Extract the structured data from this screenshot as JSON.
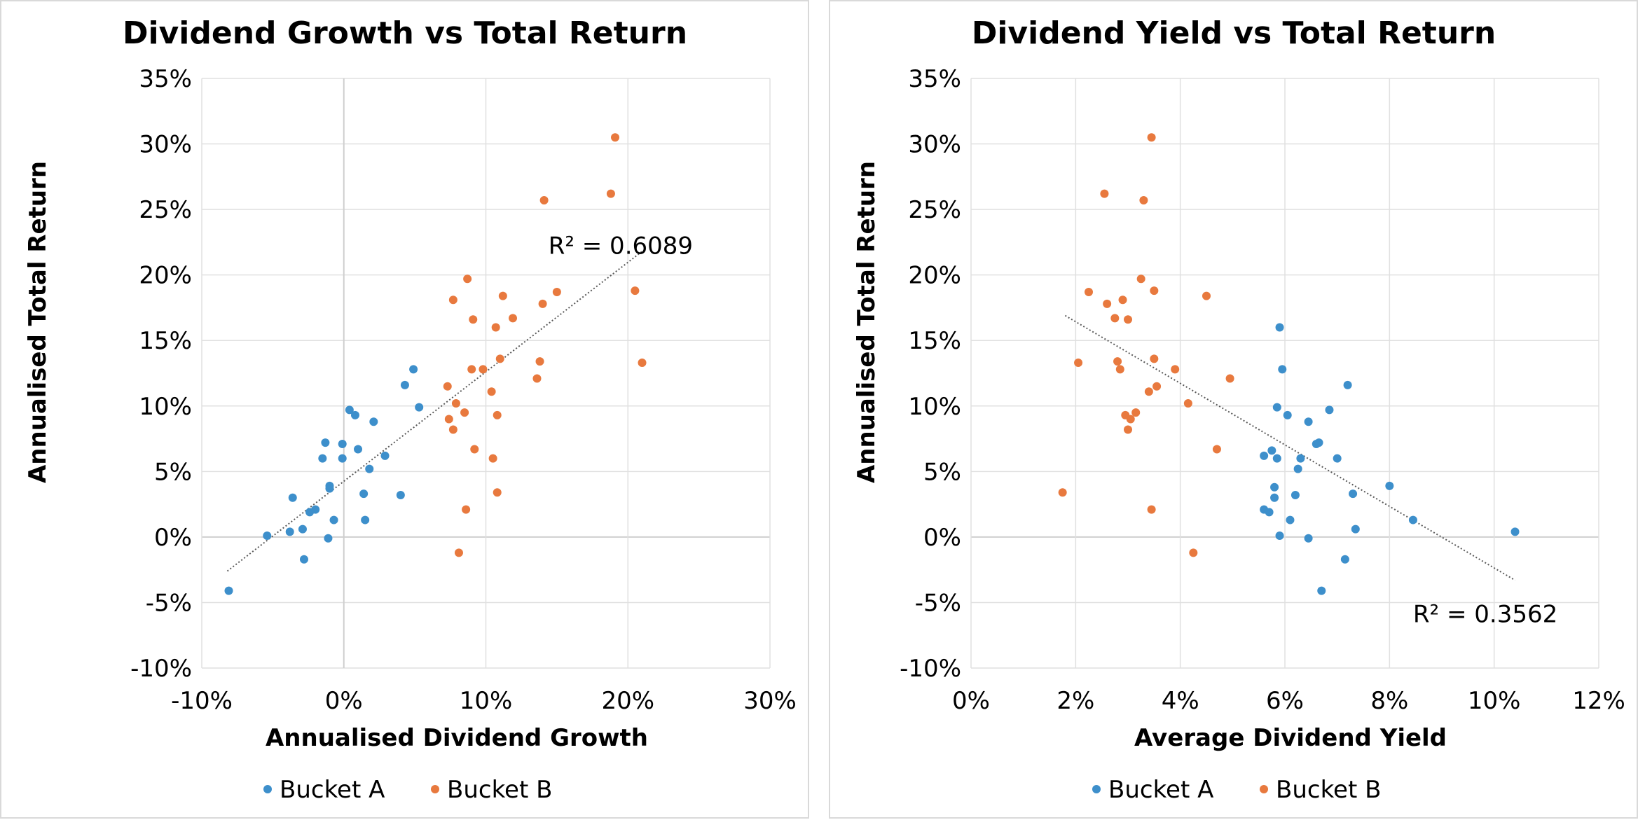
{
  "colors": {
    "bucket_a": "#3d8fcb",
    "bucket_b": "#e8793e",
    "grid": "#e0e0e0",
    "zero_line": "#cfcfcf",
    "trendline": "#595959"
  },
  "chart_data": [
    {
      "type": "scatter",
      "title": "Dividend Growth vs Total Return",
      "xlabel": "Annualised Dividend Growth",
      "ylabel": "Annualised Total Return",
      "xlim": [
        -10,
        30
      ],
      "ylim": [
        -10,
        35
      ],
      "xticks": [
        -10,
        0,
        10,
        20,
        30
      ],
      "yticks": [
        -10,
        -5,
        0,
        5,
        10,
        15,
        20,
        25,
        30,
        35
      ],
      "xtick_labels": [
        "-10%",
        "0%",
        "10%",
        "20%",
        "30%"
      ],
      "ytick_labels": [
        "-10%",
        "-5%",
        "0%",
        "5%",
        "10%",
        "15%",
        "20%",
        "25%",
        "30%",
        "35%"
      ],
      "grid": true,
      "legend_position": "bottom",
      "trendline": {
        "x": [
          -8.2,
          21.0
        ],
        "y": [
          -2.6,
          21.8
        ],
        "label": "R² = 0.6089",
        "label_at": [
          14.4,
          21.6
        ]
      },
      "series": [
        {
          "name": "Bucket A",
          "points": [
            [
              -8.1,
              -4.1
            ],
            [
              -5.4,
              0.1
            ],
            [
              -3.8,
              0.4
            ],
            [
              -3.6,
              3.0
            ],
            [
              -2.9,
              0.6
            ],
            [
              -2.8,
              -1.7
            ],
            [
              -2.4,
              1.9
            ],
            [
              -2.0,
              2.1
            ],
            [
              -1.5,
              6.0
            ],
            [
              -1.3,
              7.2
            ],
            [
              -1.1,
              -0.1
            ],
            [
              -1.0,
              3.7
            ],
            [
              -1.0,
              3.9
            ],
            [
              -0.7,
              1.3
            ],
            [
              -0.1,
              7.1
            ],
            [
              -0.1,
              6.0
            ],
            [
              0.4,
              9.7
            ],
            [
              0.8,
              9.3
            ],
            [
              1.0,
              6.7
            ],
            [
              1.4,
              3.3
            ],
            [
              1.5,
              1.3
            ],
            [
              1.8,
              5.2
            ],
            [
              2.1,
              8.8
            ],
            [
              2.9,
              6.2
            ],
            [
              4.0,
              3.2
            ],
            [
              4.3,
              11.6
            ],
            [
              4.9,
              12.8
            ],
            [
              5.3,
              9.9
            ]
          ]
        },
        {
          "name": "Bucket B",
          "points": [
            [
              7.3,
              11.5
            ],
            [
              7.4,
              9.0
            ],
            [
              7.7,
              8.2
            ],
            [
              7.7,
              18.1
            ],
            [
              7.9,
              10.2
            ],
            [
              8.1,
              -1.2
            ],
            [
              8.5,
              9.5
            ],
            [
              8.6,
              2.1
            ],
            [
              8.7,
              19.7
            ],
            [
              9.0,
              12.8
            ],
            [
              9.1,
              16.6
            ],
            [
              9.2,
              6.7
            ],
            [
              9.8,
              12.8
            ],
            [
              10.4,
              11.1
            ],
            [
              10.5,
              6.0
            ],
            [
              10.7,
              16.0
            ],
            [
              10.8,
              9.3
            ],
            [
              10.8,
              3.4
            ],
            [
              11.0,
              13.6
            ],
            [
              11.2,
              18.4
            ],
            [
              11.9,
              16.7
            ],
            [
              13.6,
              12.1
            ],
            [
              13.8,
              13.4
            ],
            [
              14.0,
              17.8
            ],
            [
              14.1,
              25.7
            ],
            [
              15.0,
              18.7
            ],
            [
              18.8,
              26.2
            ],
            [
              19.1,
              30.5
            ],
            [
              20.5,
              18.8
            ],
            [
              21.0,
              13.3
            ]
          ]
        }
      ]
    },
    {
      "type": "scatter",
      "title": "Dividend Yield vs Total Return",
      "xlabel": "Average Dividend Yield",
      "ylabel": "Annualised Total Return",
      "xlim": [
        0,
        12
      ],
      "ylim": [
        -10,
        35
      ],
      "xticks": [
        0,
        2,
        4,
        6,
        8,
        10,
        12
      ],
      "yticks": [
        -10,
        -5,
        0,
        5,
        10,
        15,
        20,
        25,
        30,
        35
      ],
      "xtick_labels": [
        "0%",
        "2%",
        "4%",
        "6%",
        "8%",
        "10%",
        "12%"
      ],
      "ytick_labels": [
        "-10%",
        "-5%",
        "0%",
        "5%",
        "10%",
        "15%",
        "20%",
        "25%",
        "30%",
        "35%"
      ],
      "grid": true,
      "legend_position": "bottom",
      "trendline": {
        "x": [
          1.8,
          10.4
        ],
        "y": [
          16.9,
          -3.3
        ],
        "label": "R² = 0.3562",
        "label_at": [
          8.45,
          -6.5
        ]
      },
      "series": [
        {
          "name": "Bucket A",
          "points": [
            [
              5.6,
              6.2
            ],
            [
              5.6,
              2.1
            ],
            [
              5.7,
              1.9
            ],
            [
              5.75,
              6.6
            ],
            [
              5.8,
              3.8
            ],
            [
              5.8,
              3.0
            ],
            [
              5.85,
              6.0
            ],
            [
              5.85,
              9.9
            ],
            [
              5.9,
              0.1
            ],
            [
              5.9,
              16.0
            ],
            [
              5.95,
              12.8
            ],
            [
              6.05,
              9.3
            ],
            [
              6.1,
              1.3
            ],
            [
              6.2,
              3.2
            ],
            [
              6.25,
              5.2
            ],
            [
              6.3,
              6.0
            ],
            [
              6.45,
              -0.1
            ],
            [
              6.45,
              8.8
            ],
            [
              6.6,
              7.1
            ],
            [
              6.65,
              7.2
            ],
            [
              6.7,
              -4.1
            ],
            [
              6.85,
              9.7
            ],
            [
              7.0,
              6.0
            ],
            [
              7.15,
              -1.7
            ],
            [
              7.2,
              11.6
            ],
            [
              7.3,
              3.3
            ],
            [
              7.35,
              0.6
            ],
            [
              8.0,
              3.9
            ],
            [
              8.45,
              1.3
            ],
            [
              10.4,
              0.4
            ]
          ]
        },
        {
          "name": "Bucket B",
          "points": [
            [
              1.75,
              3.4
            ],
            [
              2.05,
              13.3
            ],
            [
              2.25,
              18.7
            ],
            [
              2.55,
              26.2
            ],
            [
              2.6,
              17.8
            ],
            [
              2.75,
              16.7
            ],
            [
              2.8,
              13.4
            ],
            [
              2.85,
              12.8
            ],
            [
              2.9,
              18.1
            ],
            [
              2.95,
              9.3
            ],
            [
              3.0,
              8.2
            ],
            [
              3.0,
              16.6
            ],
            [
              3.05,
              9.0
            ],
            [
              3.15,
              9.5
            ],
            [
              3.25,
              19.7
            ],
            [
              3.3,
              25.7
            ],
            [
              3.4,
              11.1
            ],
            [
              3.45,
              30.5
            ],
            [
              3.45,
              2.1
            ],
            [
              3.5,
              13.6
            ],
            [
              3.5,
              18.8
            ],
            [
              3.55,
              11.5
            ],
            [
              3.9,
              12.8
            ],
            [
              4.15,
              10.2
            ],
            [
              4.25,
              -1.2
            ],
            [
              4.5,
              18.4
            ],
            [
              4.7,
              6.7
            ],
            [
              4.95,
              12.1
            ]
          ]
        }
      ]
    }
  ]
}
